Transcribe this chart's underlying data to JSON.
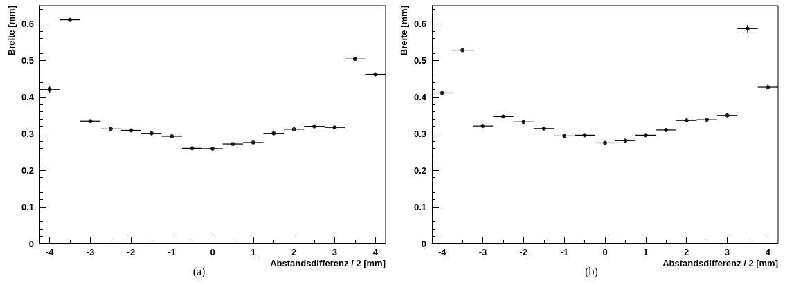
{
  "chart_data": [
    {
      "type": "scatter",
      "xlabel": "Abstandsdifferenz / 2 [mm]",
      "ylabel": "Breite [mm]",
      "annotations": [
        "(a)"
      ],
      "grid": false,
      "x": [
        -4,
        -3.5,
        -3,
        -2.5,
        -2,
        -1.5,
        -1,
        -0.5,
        0,
        0.5,
        1,
        1.5,
        2,
        2.5,
        3,
        3.5,
        4
      ],
      "series": [
        {
          "color": "#000000",
          "values": [
            0.421,
            0.611,
            0.334,
            0.313,
            0.309,
            0.301,
            0.293,
            0.26,
            0.259,
            0.272,
            0.276,
            0.301,
            0.312,
            0.32,
            0.317,
            0.504,
            0.462
          ],
          "errors": [
            0.01,
            0.004,
            0.004,
            0.004,
            0.004,
            0.004,
            0.004,
            0.003,
            0.003,
            0.004,
            0.004,
            0.004,
            0.005,
            0.005,
            0.004,
            0.004,
            0.005
          ],
          "xerrors": [
            0.25,
            0.25,
            0.25,
            0.25,
            0.25,
            0.25,
            0.25,
            0.25,
            0.25,
            0.25,
            0.25,
            0.25,
            0.25,
            0.25,
            0.25,
            0.25,
            0.25
          ]
        }
      ],
      "xlim": [
        -4.25,
        4.25
      ],
      "xticks": [
        -4,
        -3,
        -2,
        -1,
        0,
        1,
        2,
        3,
        4
      ],
      "ylim": [
        0,
        0.65
      ],
      "yticks": [
        0,
        0.1,
        0.2,
        0.3,
        0.4,
        0.5,
        0.6
      ]
    },
    {
      "type": "scatter",
      "xlabel": "Abstandsdifferenz / 2 [mm]",
      "ylabel": "Breite [mm]",
      "annotations": [
        "(b)"
      ],
      "grid": false,
      "x": [
        -4,
        -3.5,
        -3,
        -2.5,
        -2,
        -1.5,
        -1,
        -0.5,
        0,
        0.5,
        1,
        1.5,
        2,
        2.5,
        3,
        3.5,
        4
      ],
      "series": [
        {
          "color": "#000000",
          "values": [
            0.411,
            0.528,
            0.321,
            0.347,
            0.332,
            0.314,
            0.294,
            0.296,
            0.275,
            0.281,
            0.296,
            0.31,
            0.336,
            0.338,
            0.35,
            0.587,
            0.427
          ],
          "errors": [
            0.005,
            0.004,
            0.004,
            0.005,
            0.005,
            0.004,
            0.004,
            0.004,
            0.004,
            0.004,
            0.004,
            0.004,
            0.005,
            0.005,
            0.004,
            0.01,
            0.008
          ],
          "xerrors": [
            0.25,
            0.25,
            0.25,
            0.25,
            0.25,
            0.25,
            0.25,
            0.25,
            0.25,
            0.25,
            0.25,
            0.25,
            0.25,
            0.25,
            0.25,
            0.25,
            0.25
          ]
        }
      ],
      "xlim": [
        -4.25,
        4.25
      ],
      "xticks": [
        -4,
        -3,
        -2,
        -1,
        0,
        1,
        2,
        3,
        4
      ],
      "ylim": [
        0,
        0.65
      ],
      "yticks": [
        0,
        0.1,
        0.2,
        0.3,
        0.4,
        0.5,
        0.6
      ]
    }
  ]
}
